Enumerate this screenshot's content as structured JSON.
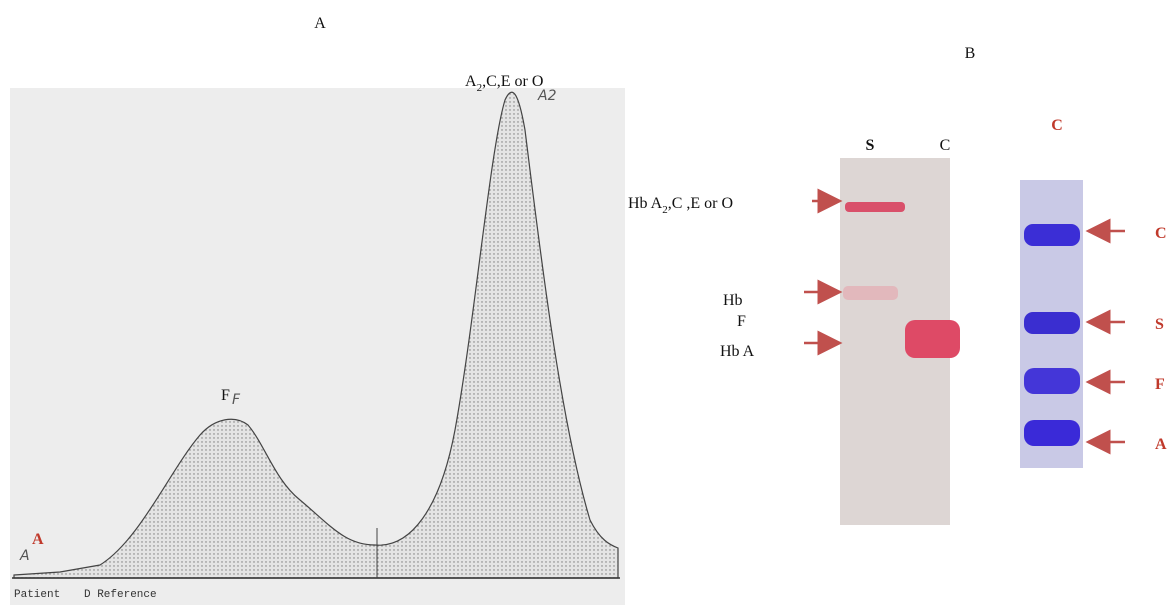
{
  "panel_a": {
    "letter": "A",
    "peak_label": {
      "main": "A",
      "sub": "2",
      "rest": ",C,E or O"
    },
    "hand_peak": "A2",
    "f_label": "F",
    "hand_f": "F",
    "a_label": "A",
    "hand_a": "A",
    "footer_patient": "Patient",
    "footer_reference": "D Reference"
  },
  "panel_b": {
    "letter": "B",
    "lane_s": "S",
    "lane_c": "C",
    "lane_c2": "C",
    "labels": [
      {
        "main": "Hb A",
        "sub": "2",
        "rest": ",C ,E or O"
      },
      {
        "main": "Hb"
      },
      {
        "main": "F"
      },
      {
        "main": "Hb A"
      }
    ],
    "band_labels": [
      "C",
      "S",
      "F",
      "A"
    ]
  }
}
